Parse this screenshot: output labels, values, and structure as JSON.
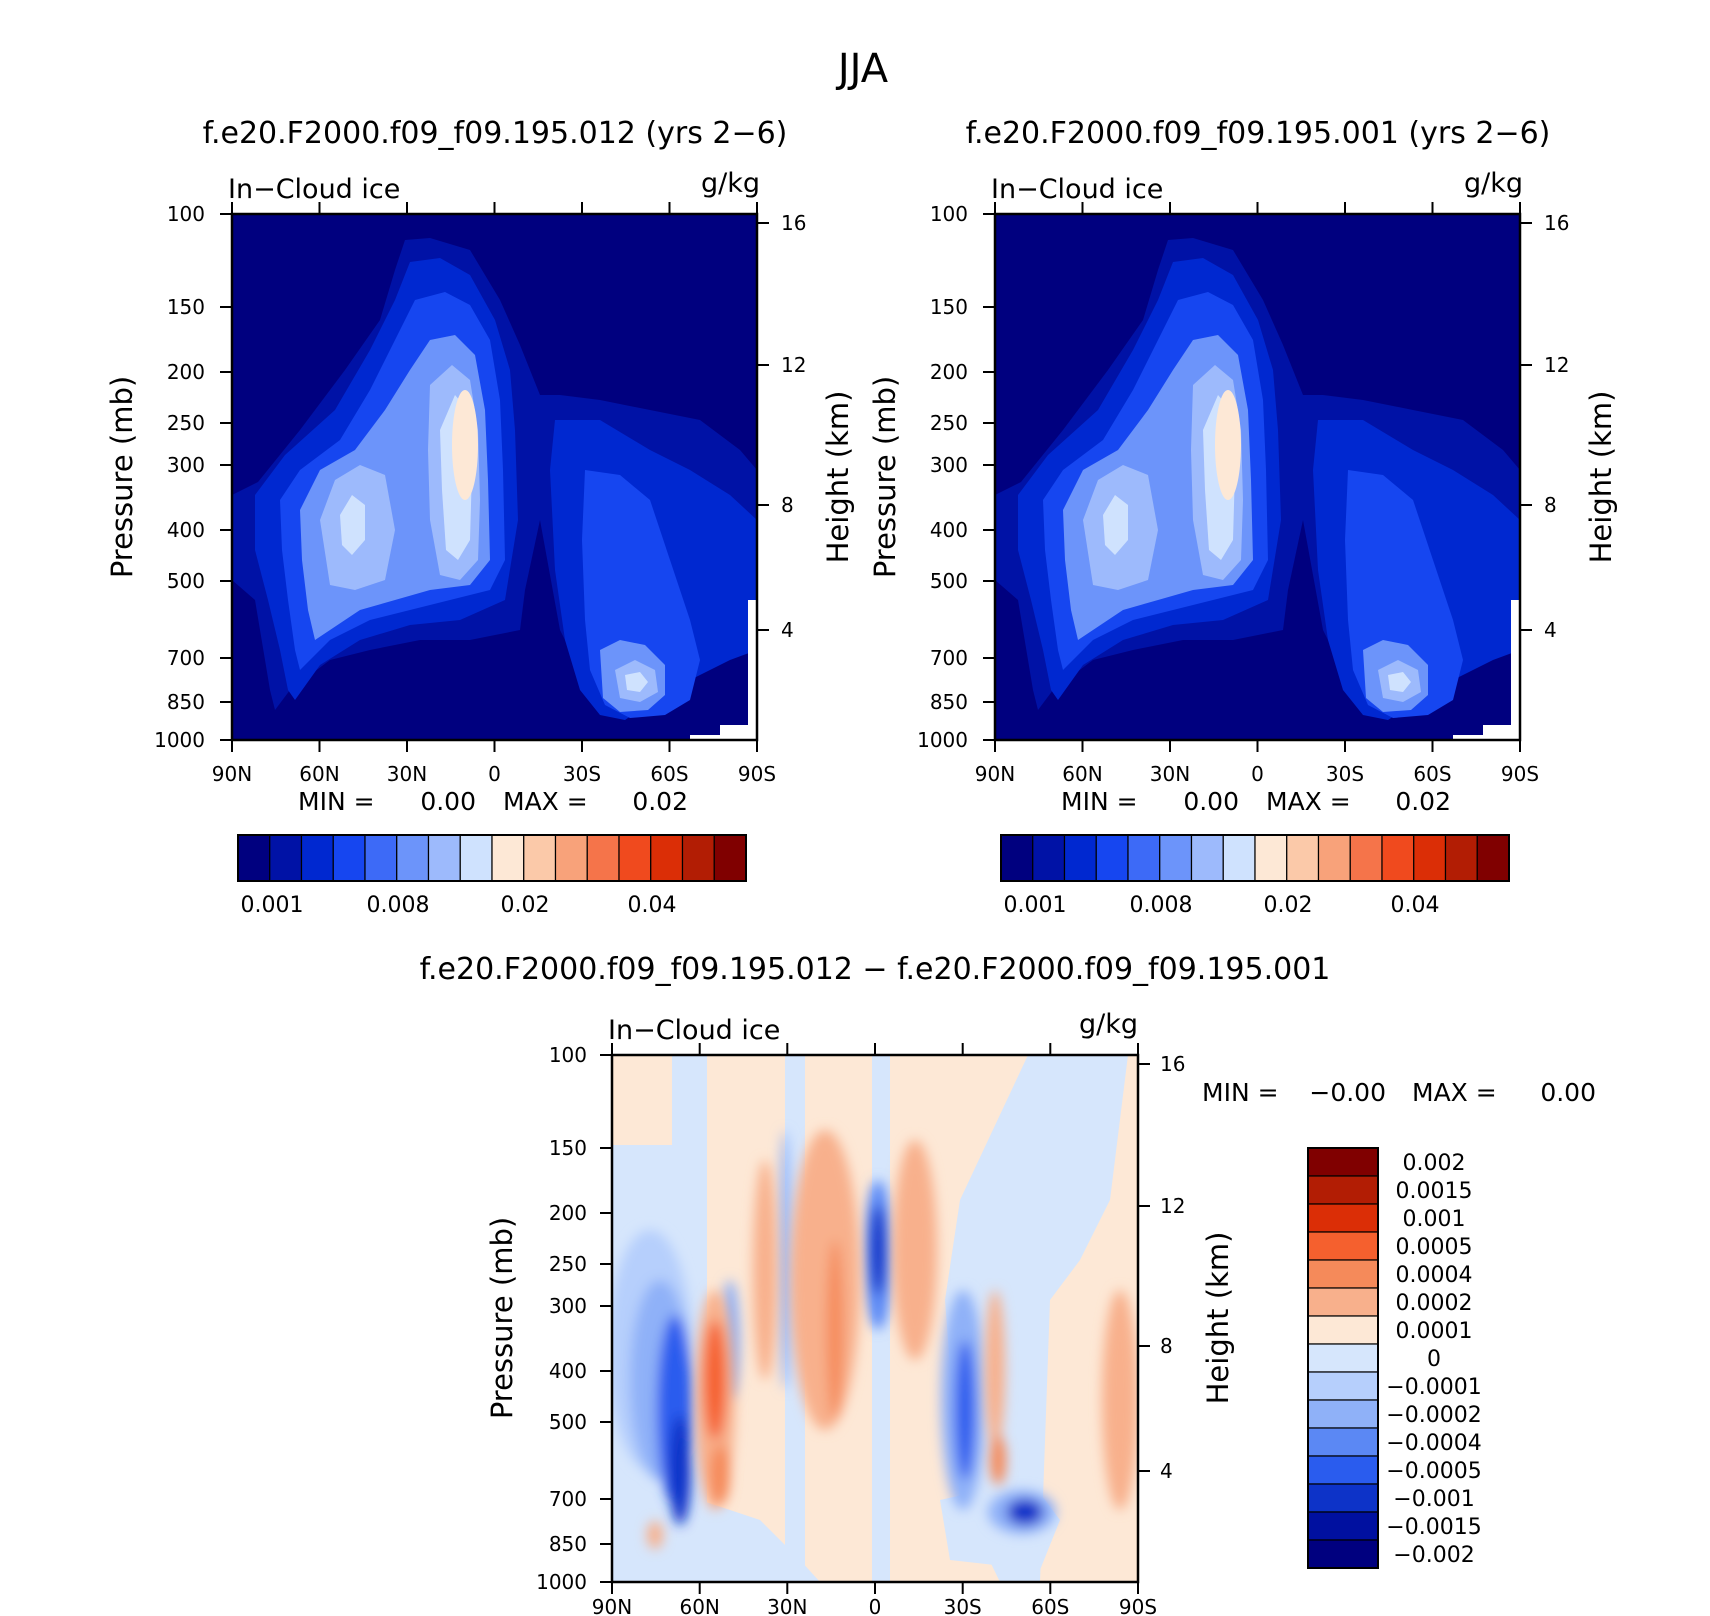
{
  "page": {
    "title": "JJA"
  },
  "panels": [
    {
      "title": "f.e20.F2000.f09_f09.195.012 (yrs 2−6)",
      "left_label": "In−Cloud ice",
      "right_label": "g/kg",
      "min_max": {
        "min_label": "MIN =",
        "min_value": "0.00",
        "max_label": "MAX =",
        "max_value": "0.02"
      }
    },
    {
      "title": "f.e20.F2000.f09_f09.195.001 (yrs 2−6)",
      "left_label": "In−Cloud ice",
      "right_label": "g/kg",
      "min_max": {
        "min_label": "MIN =",
        "min_value": "0.00",
        "max_label": "MAX =",
        "max_value": "0.02"
      }
    },
    {
      "title": "f.e20.F2000.f09_f09.195.012 − f.e20.F2000.f09_f09.195.001",
      "left_label": "In−Cloud ice",
      "right_label": "g/kg",
      "min_max": {
        "min_label": "MIN =",
        "min_value": "−0.00",
        "max_label": "MAX =",
        "max_value": "0.00"
      }
    }
  ],
  "colorbars": {
    "abs": {
      "colors": [
        "#00007f",
        "#0012a6",
        "#0028d0",
        "#1646f0",
        "#3d6af7",
        "#6c94fa",
        "#9dbafc",
        "#cfe2fe",
        "#fde8d6",
        "#fbc9a9",
        "#f8a27a",
        "#f5744a",
        "#f04a1e",
        "#db2e06",
        "#b21d04",
        "#800000"
      ],
      "tick_labels": [
        "0.001",
        "0.008",
        "0.02",
        "0.04"
      ]
    },
    "diff": {
      "colors": [
        "#800000",
        "#b21d04",
        "#db2e06",
        "#f5602e",
        "#f58a5a",
        "#f8b08c",
        "#fde8d6",
        "#d6e6fc",
        "#b6cffc",
        "#8fb1f8",
        "#5b88f4",
        "#2a5cee",
        "#0d33c8",
        "#0010a0",
        "#00007f"
      ],
      "tick_labels": [
        "0.002",
        "0.0015",
        "0.001",
        "0.0005",
        "0.0004",
        "0.0002",
        "0.0001",
        "0",
        "−0.0001",
        "−0.0002",
        "−0.0004",
        "−0.0005",
        "−0.001",
        "−0.0015",
        "−0.002"
      ]
    }
  },
  "chart_data": [
    {
      "type": "heatmap",
      "title": "f.e20.F2000.f09_f09.195.012 (yrs 2−6)",
      "variable": "In−Cloud ice",
      "units": "g/kg",
      "x_tick_labels": [
        "90N",
        "60N",
        "30N",
        "0",
        "30S",
        "60S",
        "90S"
      ],
      "y_tick_labels": [
        "100",
        "150",
        "200",
        "250",
        "300",
        "400",
        "500",
        "700",
        "850",
        "1000"
      ],
      "y_right_tick_labels": [
        "16",
        "12",
        "8",
        "4"
      ],
      "xlabel": "",
      "ylabel": "Pressure (mb)",
      "ylabel_right": "Height (km)",
      "xlim": [
        90,
        -90
      ],
      "ylim": [
        1000,
        100
      ],
      "y_scale": "log",
      "x_ticks": [
        90,
        60,
        30,
        0,
        -30,
        -60,
        -90
      ],
      "y_ticks": [
        100,
        150,
        200,
        250,
        300,
        400,
        500,
        700,
        850,
        1000
      ],
      "height_ticks_km": [
        16,
        12,
        8,
        4
      ],
      "value_range": [
        0.0,
        0.02
      ],
      "features": [
        {
          "lat": 8,
          "p": 270,
          "value": 0.018
        },
        {
          "lat": 50,
          "p": 380,
          "value": 0.01
        },
        {
          "lat": -55,
          "p": 760,
          "value": 0.009
        },
        {
          "lat": 10,
          "p": 140,
          "value": 0.002
        }
      ]
    },
    {
      "type": "heatmap",
      "title": "f.e20.F2000.f09_f09.195.001 (yrs 2−6)",
      "variable": "In−Cloud ice",
      "units": "g/kg",
      "x_tick_labels": [
        "90N",
        "60N",
        "30N",
        "0",
        "30S",
        "60S",
        "90S"
      ],
      "y_tick_labels": [
        "100",
        "150",
        "200",
        "250",
        "300",
        "400",
        "500",
        "700",
        "850",
        "1000"
      ],
      "y_right_tick_labels": [
        "16",
        "12",
        "8",
        "4"
      ],
      "xlabel": "",
      "ylabel": "Pressure (mb)",
      "ylabel_right": "Height (km)",
      "xlim": [
        90,
        -90
      ],
      "ylim": [
        1000,
        100
      ],
      "y_scale": "log",
      "x_ticks": [
        90,
        60,
        30,
        0,
        -30,
        -60,
        -90
      ],
      "y_ticks": [
        100,
        150,
        200,
        250,
        300,
        400,
        500,
        700,
        850,
        1000
      ],
      "height_ticks_km": [
        16,
        12,
        8,
        4
      ],
      "value_range": [
        0.0,
        0.02
      ],
      "features": [
        {
          "lat": 8,
          "p": 270,
          "value": 0.018
        },
        {
          "lat": 50,
          "p": 380,
          "value": 0.01
        },
        {
          "lat": -55,
          "p": 760,
          "value": 0.009
        },
        {
          "lat": 10,
          "p": 140,
          "value": 0.002
        }
      ]
    },
    {
      "type": "heatmap",
      "title": "f.e20.F2000.f09_f09.195.012 − f.e20.F2000.f09_f09.195.001",
      "variable": "In−Cloud ice",
      "units": "g/kg",
      "x_tick_labels": [
        "90N",
        "60N",
        "30N",
        "0",
        "30S",
        "60S",
        "90S"
      ],
      "y_tick_labels": [
        "100",
        "150",
        "200",
        "250",
        "300",
        "400",
        "500",
        "700",
        "850",
        "1000"
      ],
      "y_right_tick_labels": [
        "16",
        "12",
        "8",
        "4"
      ],
      "xlabel": "",
      "ylabel": "Pressure (mb)",
      "ylabel_right": "Height (km)",
      "xlim": [
        90,
        -90
      ],
      "ylim": [
        1000,
        100
      ],
      "y_scale": "log",
      "x_ticks": [
        90,
        60,
        30,
        0,
        -30,
        -60,
        -90
      ],
      "y_ticks": [
        100,
        150,
        200,
        250,
        300,
        400,
        500,
        700,
        850,
        1000
      ],
      "height_ticks_km": [
        16,
        12,
        8,
        4
      ],
      "value_range": [
        -0.002,
        0.002
      ],
      "features": [
        {
          "lat": 68,
          "p": 550,
          "value": -0.0015
        },
        {
          "lat": 55,
          "p": 450,
          "value": 0.001
        },
        {
          "lat": -2,
          "p": 240,
          "value": -0.001
        },
        {
          "lat": -32,
          "p": 520,
          "value": -0.001
        },
        {
          "lat": -53,
          "p": 790,
          "value": -0.0015
        },
        {
          "lat": 18,
          "p": 380,
          "value": 0.0005
        }
      ]
    }
  ]
}
